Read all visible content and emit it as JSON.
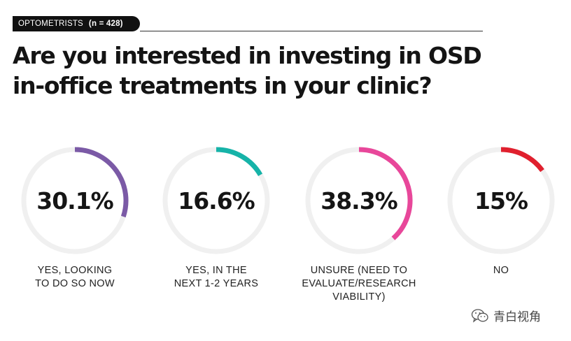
{
  "header": {
    "tag_label": "OPTOMETRISTS",
    "tag_n": "(n = 428)"
  },
  "title": {
    "line1": "Are you interested in investing in OSD",
    "line2": "in-office treatments in your clinic?"
  },
  "chart_data": {
    "type": "donut",
    "categories": [
      "YES, LOOKING TO DO SO NOW",
      "YES, IN THE NEXT 1-2 YEARS",
      "UNSURE (NEED TO EVALUATE/RESEARCH VIABILITY)",
      "NO"
    ],
    "values": [
      30.1,
      16.6,
      38.3,
      15
    ],
    "value_labels": [
      "30.1%",
      "16.6%",
      "38.3%",
      "15%"
    ],
    "label_lines": [
      "YES, LOOKING\nTO DO SO NOW",
      "YES, IN THE\nNEXT 1-2 YEARS",
      "UNSURE (NEED TO\nEVALUATE/RESEARCH\nVIABILITY)",
      "NO"
    ],
    "colors": [
      "#7b5aa6",
      "#16b3a8",
      "#e8479a",
      "#e0202e"
    ],
    "track_color": "#f0f0f0",
    "unit": "%"
  },
  "watermark": {
    "icon": "wechat-icon",
    "text": "青白视角"
  }
}
